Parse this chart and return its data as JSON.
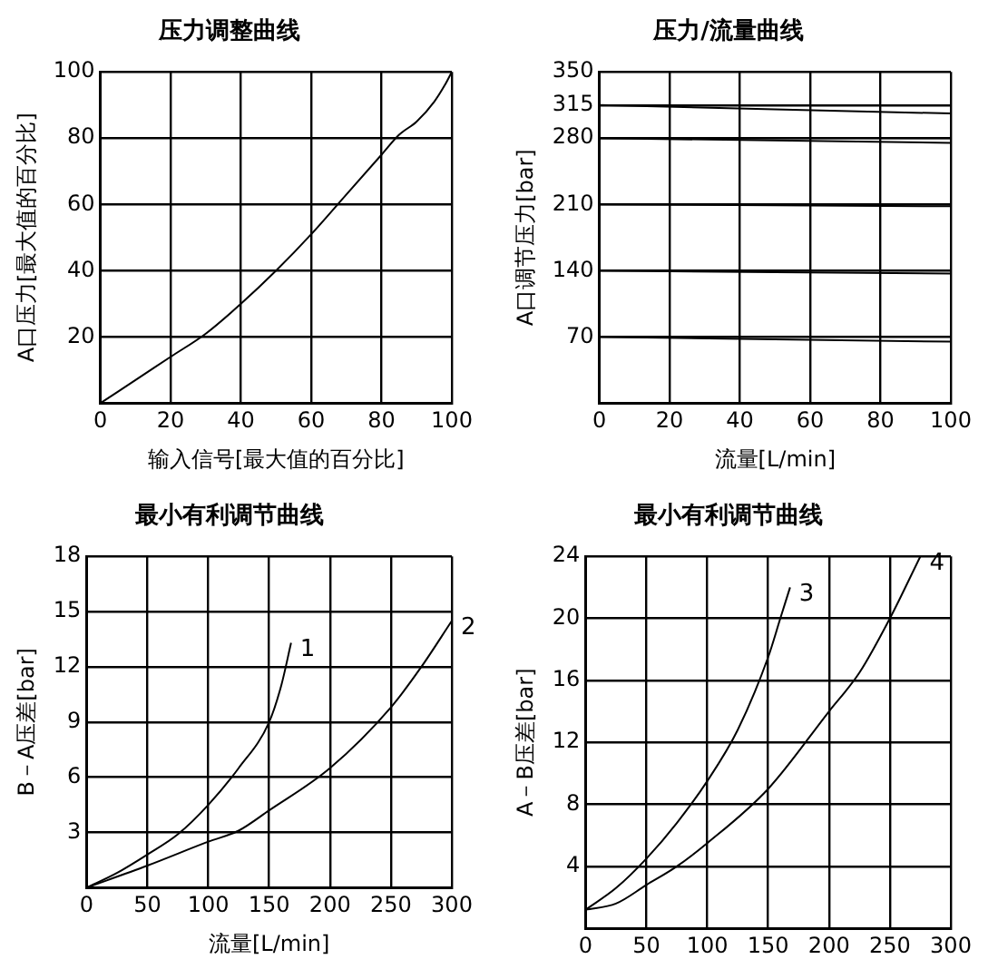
{
  "chart_data": [
    {
      "type": "line",
      "title": "压力调整曲线",
      "xlabel": "输入信号[最大值的百分比]",
      "ylabel": "A口压力[最大值的百分比]",
      "xlim": [
        0,
        100
      ],
      "xticks": [
        0,
        20,
        40,
        60,
        80,
        100
      ],
      "ylim": [
        0,
        100
      ],
      "yticks": [
        20,
        40,
        60,
        80,
        100
      ],
      "grid": true,
      "legend": false,
      "marker": "none",
      "line_style": "solid",
      "series": [
        {
          "color": "#000000",
          "x": [
            0,
            10,
            20,
            30,
            40,
            50,
            60,
            70,
            80,
            85,
            90,
            95,
            98,
            100
          ],
          "values": [
            0,
            7,
            14,
            21,
            30,
            40,
            51,
            63,
            75,
            81,
            85,
            91,
            96,
            100
          ]
        }
      ]
    },
    {
      "type": "line",
      "title": "压力/流量曲线",
      "xlabel": "流量[L/min]",
      "ylabel": "A口调节压力[bar]",
      "xlim": [
        0,
        100
      ],
      "xticks": [
        0,
        20,
        40,
        60,
        80,
        100
      ],
      "ylim": [
        0,
        350
      ],
      "yticks": [
        70,
        140,
        210,
        280,
        315,
        350
      ],
      "grid": true,
      "legend": false,
      "marker": "none",
      "line_style": "solid",
      "series": [
        {
          "color": "#000000",
          "x": [
            0,
            100
          ],
          "values": [
            315,
            306
          ]
        },
        {
          "color": "#000000",
          "x": [
            0,
            100
          ],
          "values": [
            280,
            280
          ]
        },
        {
          "color": "#000000",
          "x": [
            0,
            100
          ],
          "values": [
            280,
            275
          ]
        },
        {
          "color": "#000000",
          "x": [
            0,
            100
          ],
          "values": [
            210,
            208
          ]
        },
        {
          "color": "#000000",
          "x": [
            0,
            100
          ],
          "values": [
            140,
            137
          ]
        },
        {
          "color": "#000000",
          "x": [
            0,
            100
          ],
          "values": [
            70,
            65
          ]
        }
      ]
    },
    {
      "type": "line",
      "title": "最小有利调节曲线",
      "xlabel": "流量[L/min]",
      "ylabel": "B－A压差[bar]",
      "xlim": [
        0,
        300
      ],
      "xticks": [
        0,
        50,
        100,
        150,
        200,
        250,
        300
      ],
      "ylim": [
        0,
        18
      ],
      "yticks": [
        3,
        6,
        9,
        12,
        15,
        18
      ],
      "grid": true,
      "legend": false,
      "marker": "none",
      "line_style": "solid",
      "series": [
        {
          "name": "1",
          "color": "#000000",
          "x": [
            0,
            25,
            50,
            75,
            100,
            125,
            150,
            160,
            168
          ],
          "values": [
            0,
            0.8,
            1.8,
            2.9,
            4.5,
            6.5,
            9,
            11,
            13.3
          ]
        },
        {
          "name": "2",
          "color": "#000000",
          "x": [
            0,
            50,
            100,
            125,
            150,
            200,
            250,
            275,
            300
          ],
          "values": [
            0,
            1.2,
            2.5,
            3.1,
            4.2,
            6.5,
            9.8,
            12,
            14.5
          ]
        }
      ]
    },
    {
      "type": "line",
      "title": "最小有利调节曲线",
      "ylabel": "A－B压差[bar]",
      "xlim": [
        0,
        300
      ],
      "xticks": [
        0,
        50,
        100,
        150,
        200,
        250,
        300
      ],
      "ylim": [
        0,
        24
      ],
      "yticks": [
        4,
        8,
        12,
        16,
        20,
        24
      ],
      "grid": true,
      "legend": false,
      "marker": "none",
      "line_style": "solid",
      "series": [
        {
          "name": "3",
          "color": "#000000",
          "x": [
            0,
            25,
            50,
            75,
            100,
            125,
            150,
            160,
            168
          ],
          "values": [
            1.2,
            2.6,
            4.5,
            6.8,
            9.5,
            12.8,
            17.5,
            20,
            22
          ]
        },
        {
          "name": "4",
          "color": "#000000",
          "x": [
            0,
            25,
            50,
            75,
            100,
            150,
            200,
            225,
            250,
            275
          ],
          "values": [
            1.2,
            1.6,
            2.8,
            4,
            5.5,
            9,
            14,
            16.5,
            20,
            24
          ]
        }
      ]
    }
  ]
}
